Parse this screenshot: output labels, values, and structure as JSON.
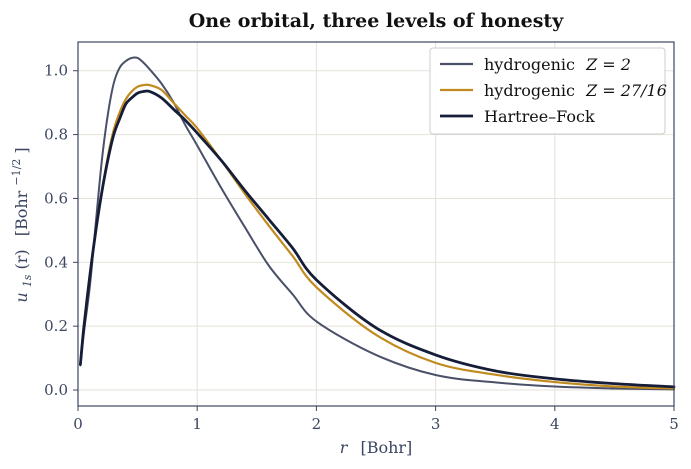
{
  "chart_data": {
    "type": "line",
    "title": "One orbital, three levels of honesty",
    "xlabel": {
      "var": "r",
      "unit": "[Bohr]"
    },
    "ylabel": {
      "var": "u",
      "sub": "1s",
      "arg": "(r)",
      "unit_base": "[Bohr",
      "unit_exp": "−1/2",
      "unit_close": "]"
    },
    "xlim": [
      0,
      5
    ],
    "ylim": [
      -0.05,
      1.09
    ],
    "xticks": [
      0,
      1,
      2,
      3,
      4,
      5
    ],
    "xtick_labels": [
      "0",
      "1",
      "2",
      "3",
      "4",
      "5"
    ],
    "yticks": [
      0.0,
      0.2,
      0.4,
      0.6,
      0.8,
      1.0
    ],
    "ytick_labels": [
      "0.0",
      "0.2",
      "0.4",
      "0.6",
      "0.8",
      "1.0"
    ],
    "grid": true,
    "legend_position": "top-right",
    "series": [
      {
        "name": "hydrogenic Z = 2",
        "legend_text": "hydrogenic",
        "legend_math": "Z = 2",
        "color": "#4a5068",
        "x": [
          0.02,
          0.05,
          0.1,
          0.15,
          0.2,
          0.25,
          0.3,
          0.35,
          0.4,
          0.45,
          0.5,
          0.55,
          0.6,
          0.7,
          0.8,
          0.9,
          1.0,
          1.2,
          1.4,
          1.6,
          1.8,
          2.0,
          2.5,
          3.0,
          3.5,
          4.0,
          4.5,
          5.0
        ],
        "y": [
          0.077,
          0.181,
          0.327,
          0.526,
          0.719,
          0.862,
          0.961,
          1.01,
          1.03,
          1.04,
          1.04,
          1.025,
          1.005,
          0.96,
          0.902,
          0.83,
          0.766,
          0.634,
          0.51,
          0.39,
          0.3,
          0.215,
          0.11,
          0.047,
          0.024,
          0.011,
          0.005,
          0.002
        ]
      },
      {
        "name": "hydrogenic Z = 27/16",
        "legend_text": "hydrogenic",
        "legend_math": "Z = 27/16",
        "color": "#c08a1e",
        "x": [
          0.02,
          0.05,
          0.1,
          0.15,
          0.2,
          0.25,
          0.3,
          0.35,
          0.4,
          0.45,
          0.5,
          0.55,
          0.6,
          0.7,
          0.8,
          0.9,
          1.0,
          1.2,
          1.4,
          1.6,
          1.8,
          2.0,
          2.5,
          3.0,
          3.5,
          4.0,
          4.5,
          5.0
        ],
        "y": [
          0.08,
          0.2,
          0.36,
          0.5,
          0.62,
          0.73,
          0.815,
          0.87,
          0.91,
          0.935,
          0.95,
          0.955,
          0.955,
          0.94,
          0.9,
          0.86,
          0.82,
          0.72,
          0.615,
          0.515,
          0.42,
          0.322,
          0.173,
          0.085,
          0.048,
          0.025,
          0.011,
          0.005
        ]
      },
      {
        "name": "Hartree–Fock",
        "legend_text": "Hartree–Fock",
        "legend_math": "",
        "color": "#161d38",
        "x": [
          0.02,
          0.05,
          0.1,
          0.15,
          0.2,
          0.25,
          0.3,
          0.35,
          0.4,
          0.45,
          0.5,
          0.55,
          0.6,
          0.7,
          0.8,
          0.9,
          1.0,
          1.2,
          1.4,
          1.6,
          1.8,
          2.0,
          2.5,
          3.0,
          3.5,
          4.0,
          4.5,
          5.0
        ],
        "y": [
          0.08,
          0.2,
          0.36,
          0.5,
          0.62,
          0.72,
          0.8,
          0.85,
          0.895,
          0.915,
          0.93,
          0.935,
          0.935,
          0.915,
          0.88,
          0.845,
          0.805,
          0.72,
          0.625,
          0.535,
          0.445,
          0.345,
          0.195,
          0.11,
          0.06,
          0.035,
          0.02,
          0.01
        ]
      }
    ]
  }
}
